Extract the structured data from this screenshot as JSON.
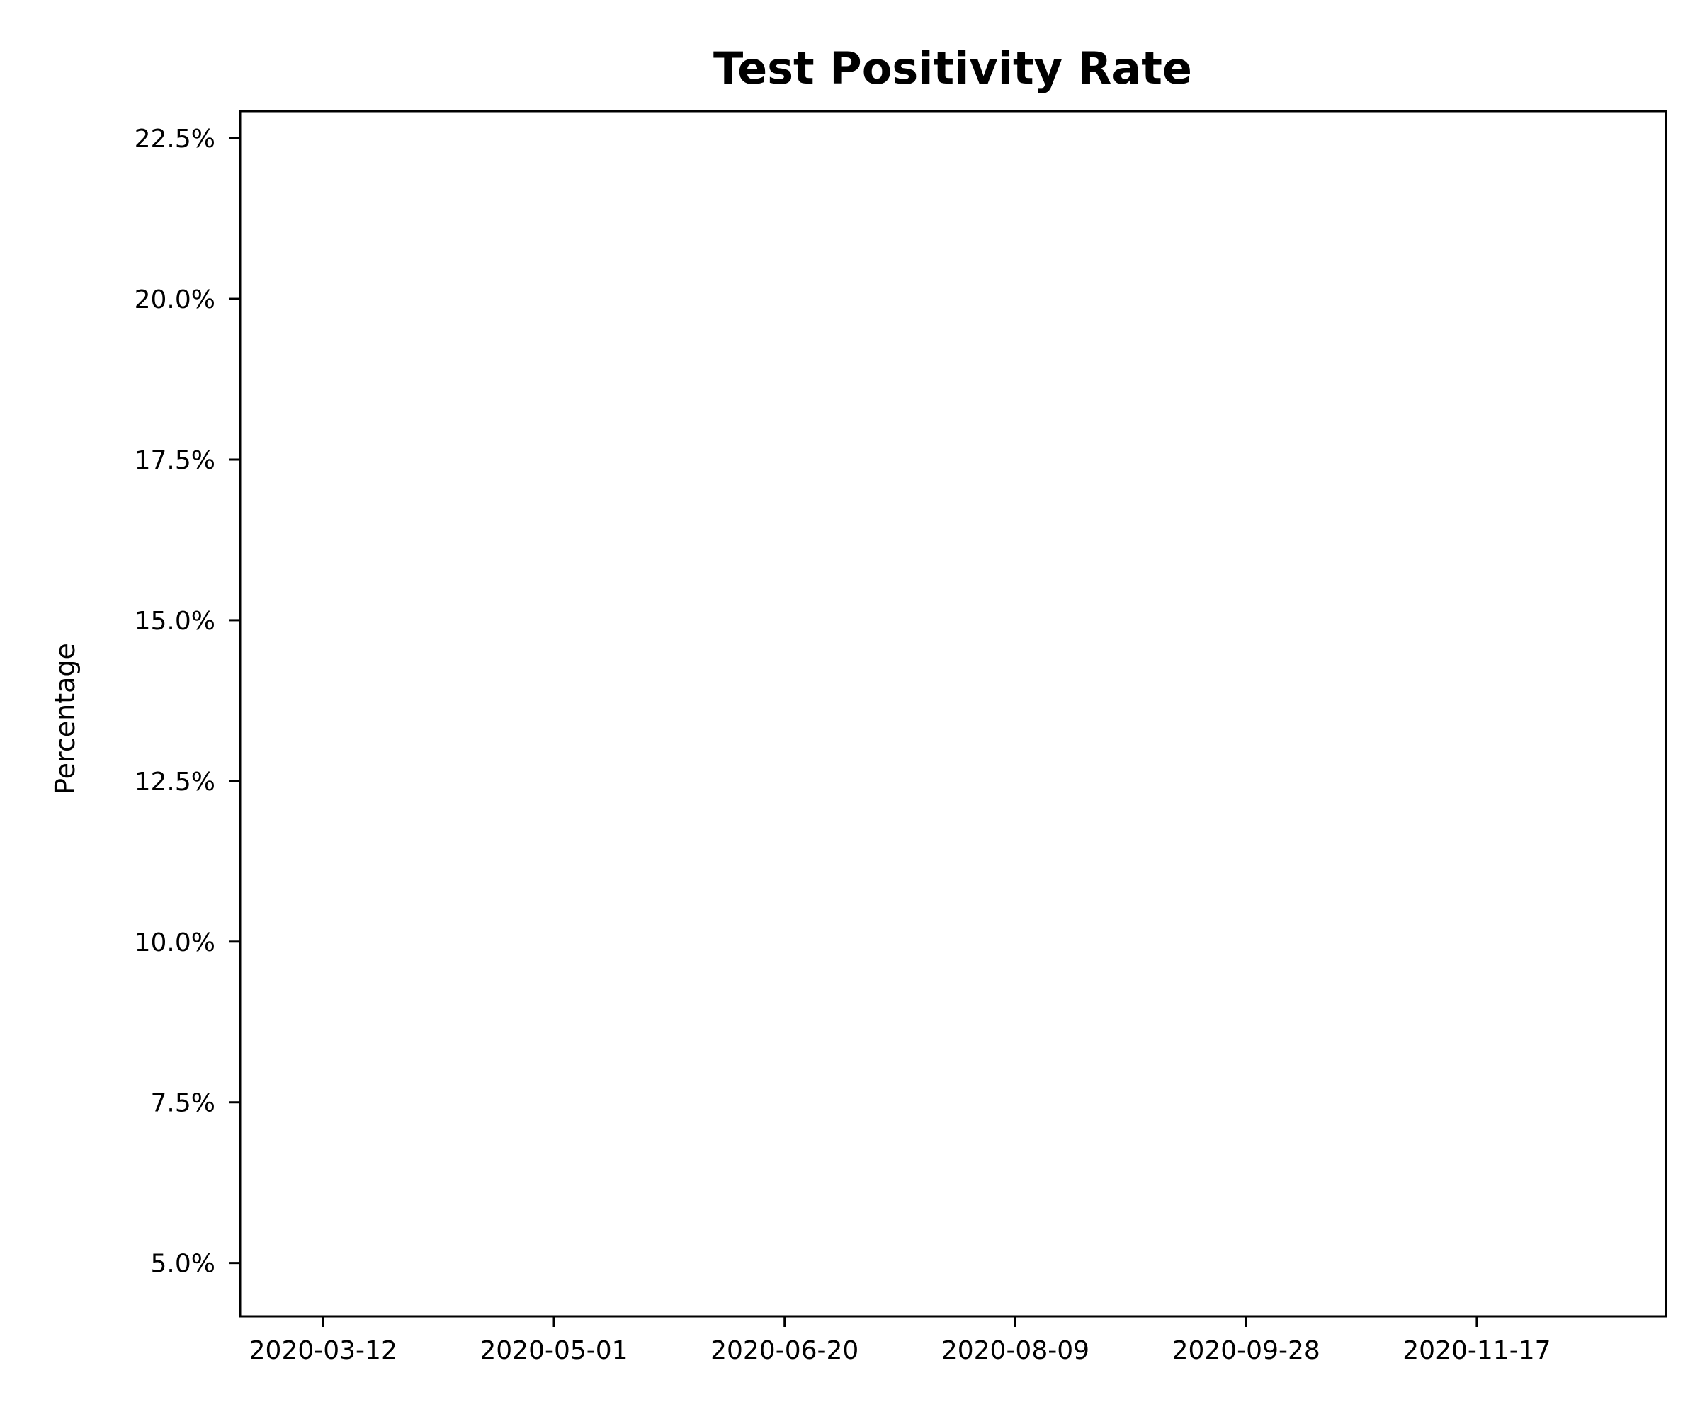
{
  "chart_data": {
    "type": "line",
    "title": "Test Positivity Rate",
    "xlabel": "",
    "ylabel": "Percentage",
    "x_axis": {
      "scale": "date",
      "range": [
        "2020-02-23",
        "2020-12-28"
      ],
      "ticks": [
        "2020-03-12",
        "2020-05-01",
        "2020-06-20",
        "2020-08-09",
        "2020-09-28",
        "2020-11-17"
      ]
    },
    "y_axis": {
      "scale": "linear",
      "range": [
        4.17,
        22.92
      ],
      "ticks": [
        5.0,
        7.5,
        10.0,
        12.5,
        15.0,
        17.5,
        20.0,
        22.5
      ],
      "tick_labels": [
        "5.0%",
        "7.5%",
        "10.0%",
        "12.5%",
        "15.0%",
        "17.5%",
        "20.0%",
        "22.5%"
      ]
    },
    "grid": false,
    "legend": "none",
    "series": []
  },
  "colors": {
    "axis": "#000000",
    "background": "#ffffff"
  }
}
